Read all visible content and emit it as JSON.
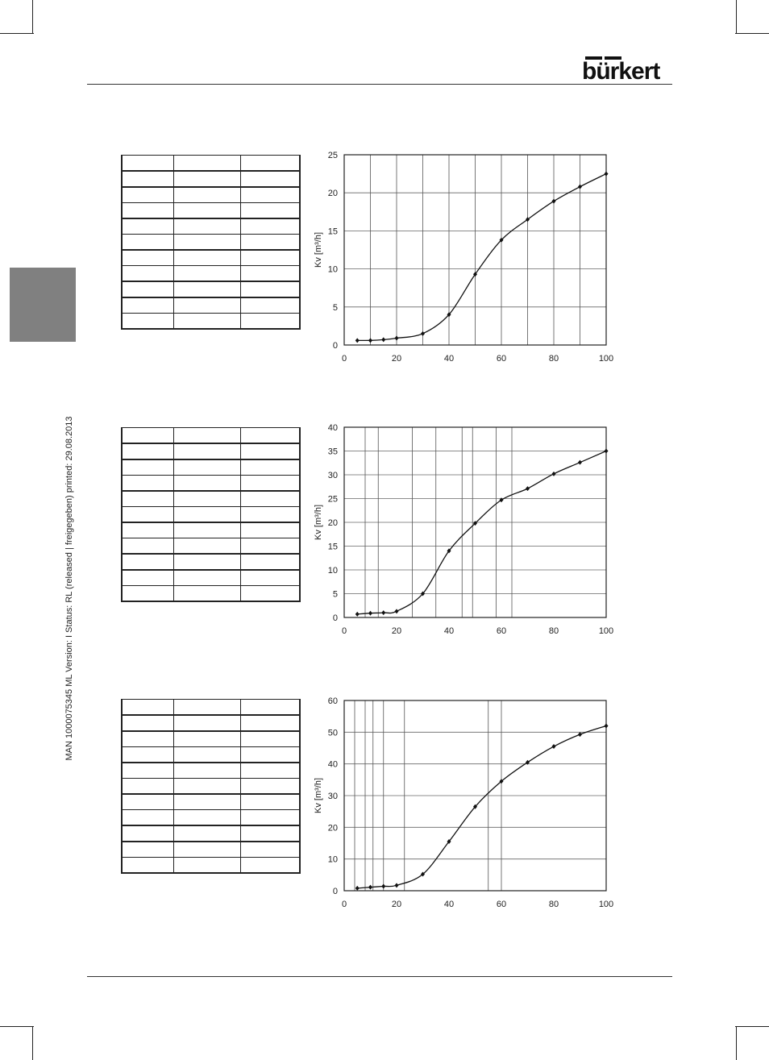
{
  "header": {
    "brand": "bürkert"
  },
  "sidebar": {
    "document_info": "MAN  1000075345  ML  Version: I  Status: RL (released | freigegeben)  printed: 29.08.2013"
  },
  "tables": [
    {
      "rows": 11
    },
    {
      "rows": 11
    },
    {
      "rows": 11
    }
  ],
  "chart_data": [
    {
      "type": "line",
      "ylabel": "Kv [m³/h]",
      "xlabel": "",
      "xlim": [
        0,
        100
      ],
      "ylim": [
        0,
        25
      ],
      "xticks": [
        0,
        20,
        40,
        60,
        80,
        100
      ],
      "yticks": [
        0,
        5,
        10,
        15,
        20,
        25
      ],
      "grid": true,
      "x": [
        5,
        10,
        15,
        20,
        30,
        40,
        50,
        60,
        70,
        80,
        90,
        100
      ],
      "y": [
        0.6,
        0.6,
        0.7,
        0.9,
        1.5,
        4.0,
        9.3,
        13.8,
        16.5,
        18.9,
        20.8,
        22.5
      ]
    },
    {
      "type": "line",
      "ylabel": "Kv [m³/h]",
      "xlabel": "",
      "xlim": [
        0,
        100
      ],
      "ylim": [
        0,
        40
      ],
      "xticks": [
        0,
        20,
        40,
        60,
        80,
        100
      ],
      "yticks": [
        0,
        5,
        10,
        15,
        20,
        25,
        30,
        35,
        40
      ],
      "grid": true,
      "x": [
        5,
        10,
        15,
        20,
        30,
        40,
        50,
        60,
        70,
        80,
        90,
        100
      ],
      "y": [
        0.7,
        0.9,
        1.0,
        1.3,
        5.0,
        14.0,
        19.8,
        24.7,
        27.1,
        30.2,
        32.6,
        35.0
      ]
    },
    {
      "type": "line",
      "ylabel": "Kv [m³/h]",
      "xlabel": "",
      "xlim": [
        0,
        100
      ],
      "ylim": [
        0,
        60
      ],
      "xticks": [
        0,
        20,
        40,
        60,
        80,
        100
      ],
      "yticks": [
        0,
        10,
        20,
        30,
        40,
        50,
        60
      ],
      "grid": true,
      "x": [
        5,
        10,
        15,
        20,
        30,
        40,
        50,
        60,
        70,
        80,
        90,
        100
      ],
      "y": [
        0.8,
        1.1,
        1.4,
        1.7,
        5.2,
        15.5,
        26.5,
        34.5,
        40.5,
        45.5,
        49.3,
        52.0
      ]
    }
  ]
}
